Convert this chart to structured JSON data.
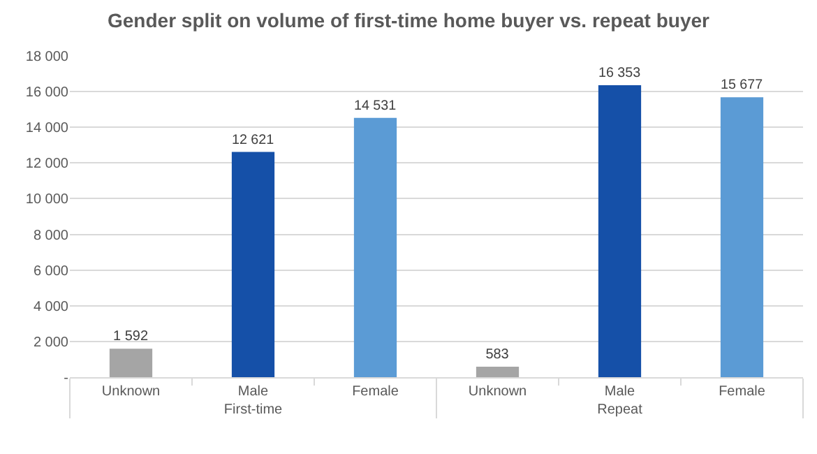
{
  "chart_data": {
    "type": "bar",
    "title": "Gender split on volume of first-time home buyer vs. repeat buyer",
    "categories": [
      "Unknown",
      "Male",
      "Female",
      "Unknown",
      "Male",
      "Female"
    ],
    "values": [
      1592,
      12621,
      14531,
      583,
      16353,
      15677
    ],
    "colors": [
      "#a5a5a5",
      "#1550a8",
      "#5b9bd5",
      "#a5a5a5",
      "#1550a8",
      "#5b9bd5"
    ],
    "value_labels": [
      "1 592",
      "12 621",
      "14 531",
      "583",
      "16 353",
      "15 677"
    ],
    "annotations": [
      "First-time",
      "Repeat"
    ],
    "ylim": [
      0,
      18000
    ],
    "yticks": [
      {
        "value": 0,
        "label": "-"
      },
      {
        "value": 2000,
        "label": "2 000"
      },
      {
        "value": 4000,
        "label": "4 000"
      },
      {
        "value": 6000,
        "label": "6 000"
      },
      {
        "value": 8000,
        "label": "8 000"
      },
      {
        "value": 10000,
        "label": "10 000"
      },
      {
        "value": 12000,
        "label": "12 000"
      },
      {
        "value": 14000,
        "label": "14 000"
      },
      {
        "value": 16000,
        "label": "16 000"
      },
      {
        "value": 18000,
        "label": "18 000"
      }
    ],
    "grid": "y"
  }
}
